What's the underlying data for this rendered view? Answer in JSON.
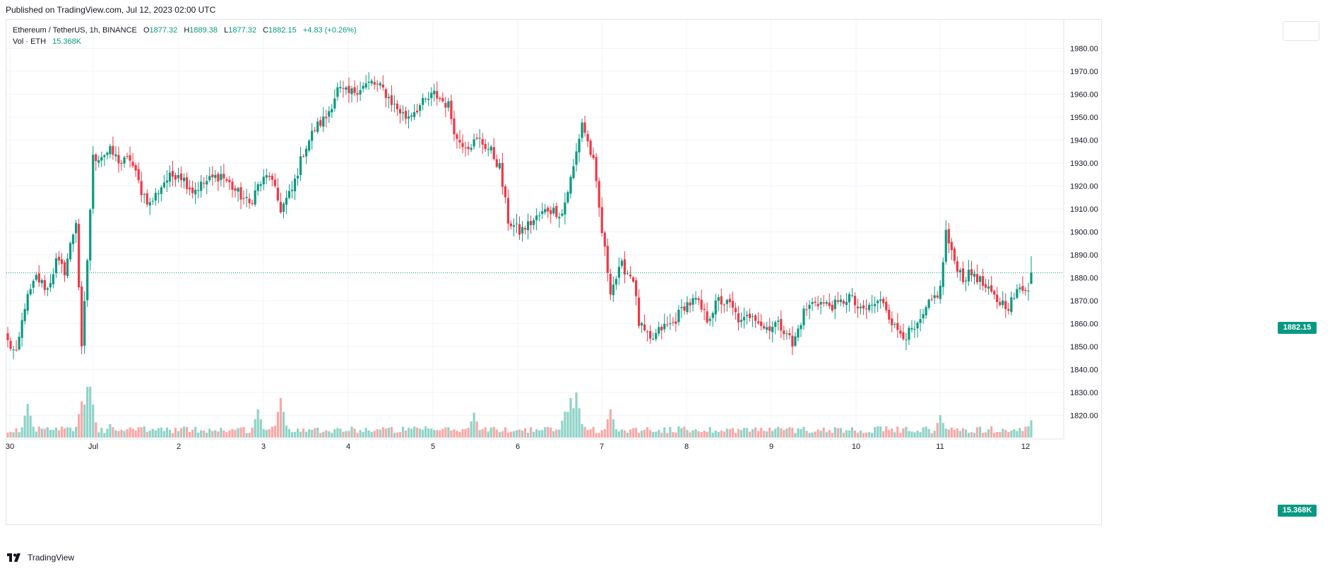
{
  "header": {
    "published": "Published on TradingView.com, Jul 12, 2023 02:00 UTC"
  },
  "legend": {
    "symbol": "Ethereum / TetherUS, 1h, BINANCE",
    "o_label": "O",
    "o_value": "1877.32",
    "h_label": "H",
    "h_value": "1889.38",
    "l_label": "L",
    "l_value": "1877.32",
    "c_label": "C",
    "c_value": "1882.15",
    "change": "+4.83 (+0.26%)",
    "vol_label": "Vol · ETH",
    "vol_value": "15.368K"
  },
  "price_badge": "1882.15",
  "volume_badge": "15.368K",
  "footer": {
    "brand": "TradingView"
  },
  "colors": {
    "up": "#089981",
    "down": "#f23645",
    "up_vol": "#8fd3c8",
    "down_vol": "#f7a9a7",
    "grid": "#f0f3fa",
    "axis_text": "#131722"
  },
  "chart_data": {
    "type": "candlestick",
    "symbol": "Ethereum / TetherUS",
    "interval": "1h",
    "exchange": "BINANCE",
    "ylim": [
      1810,
      1985
    ],
    "y_ticks": [
      "1820.00",
      "1830.00",
      "1840.00",
      "1850.00",
      "1860.00",
      "1870.00",
      "1880.00",
      "1890.00",
      "1900.00",
      "1910.00",
      "1920.00",
      "1930.00",
      "1940.00",
      "1950.00",
      "1960.00",
      "1970.00",
      "1980.00"
    ],
    "x_ticks": [
      "30",
      "Jul",
      "2",
      "3",
      "4",
      "5",
      "6",
      "7",
      "8",
      "9",
      "10",
      "11",
      "12"
    ],
    "last_price": 1882.15,
    "last_volume": "15.368K",
    "close_anchors": [
      [
        0,
        1852
      ],
      [
        3,
        1846
      ],
      [
        6,
        1868
      ],
      [
        10,
        1880
      ],
      [
        14,
        1875
      ],
      [
        17,
        1887
      ],
      [
        20,
        1883
      ],
      [
        24,
        1905
      ],
      [
        26,
        1848
      ],
      [
        28,
        1888
      ],
      [
        30,
        1932
      ],
      [
        36,
        1935
      ],
      [
        40,
        1930
      ],
      [
        43,
        1932
      ],
      [
        47,
        1918
      ],
      [
        50,
        1912
      ],
      [
        55,
        1922
      ],
      [
        60,
        1926
      ],
      [
        65,
        1918
      ],
      [
        70,
        1922
      ],
      [
        75,
        1925
      ],
      [
        80,
        1918
      ],
      [
        85,
        1912
      ],
      [
        88,
        1920
      ],
      [
        92,
        1925
      ],
      [
        96,
        1910
      ],
      [
        100,
        1918
      ],
      [
        104,
        1935
      ],
      [
        108,
        1945
      ],
      [
        112,
        1950
      ],
      [
        116,
        1962
      ],
      [
        120,
        1960
      ],
      [
        124,
        1963
      ],
      [
        128,
        1965
      ],
      [
        132,
        1962
      ],
      [
        136,
        1955
      ],
      [
        140,
        1950
      ],
      [
        145,
        1955
      ],
      [
        150,
        1960
      ],
      [
        155,
        1955
      ],
      [
        158,
        1940
      ],
      [
        162,
        1938
      ],
      [
        166,
        1940
      ],
      [
        170,
        1935
      ],
      [
        173,
        1928
      ],
      [
        176,
        1905
      ],
      [
        180,
        1900
      ],
      [
        185,
        1905
      ],
      [
        190,
        1910
      ],
      [
        195,
        1908
      ],
      [
        199,
        1928
      ],
      [
        202,
        1948
      ],
      [
        206,
        1930
      ],
      [
        209,
        1900
      ],
      [
        212,
        1875
      ],
      [
        216,
        1885
      ],
      [
        220,
        1880
      ],
      [
        222,
        1860
      ],
      [
        226,
        1852
      ],
      [
        230,
        1858
      ],
      [
        234,
        1860
      ],
      [
        238,
        1868
      ],
      [
        242,
        1870
      ],
      [
        246,
        1862
      ],
      [
        250,
        1870
      ],
      [
        254,
        1868
      ],
      [
        258,
        1860
      ],
      [
        262,
        1865
      ],
      [
        266,
        1858
      ],
      [
        270,
        1860
      ],
      [
        274,
        1857
      ],
      [
        276,
        1850
      ],
      [
        280,
        1865
      ],
      [
        284,
        1870
      ],
      [
        288,
        1868
      ],
      [
        292,
        1868
      ],
      [
        296,
        1872
      ],
      [
        300,
        1865
      ],
      [
        304,
        1868
      ],
      [
        308,
        1870
      ],
      [
        312,
        1858
      ],
      [
        316,
        1855
      ],
      [
        320,
        1858
      ],
      [
        324,
        1868
      ],
      [
        328,
        1875
      ],
      [
        330,
        1900
      ],
      [
        332,
        1890
      ],
      [
        336,
        1880
      ],
      [
        340,
        1882
      ],
      [
        344,
        1875
      ],
      [
        348,
        1870
      ],
      [
        352,
        1868
      ],
      [
        356,
        1875
      ],
      [
        360,
        1877
      ]
    ],
    "volume_peaks": [
      [
        7,
        30
      ],
      [
        26,
        32
      ],
      [
        28,
        45
      ],
      [
        29,
        45
      ],
      [
        36,
        12
      ],
      [
        88,
        25
      ],
      [
        96,
        35
      ],
      [
        104,
        8
      ],
      [
        164,
        22
      ],
      [
        196,
        23
      ],
      [
        198,
        35
      ],
      [
        200,
        40
      ],
      [
        212,
        25
      ],
      [
        328,
        20
      ],
      [
        360,
        15.4
      ]
    ]
  }
}
